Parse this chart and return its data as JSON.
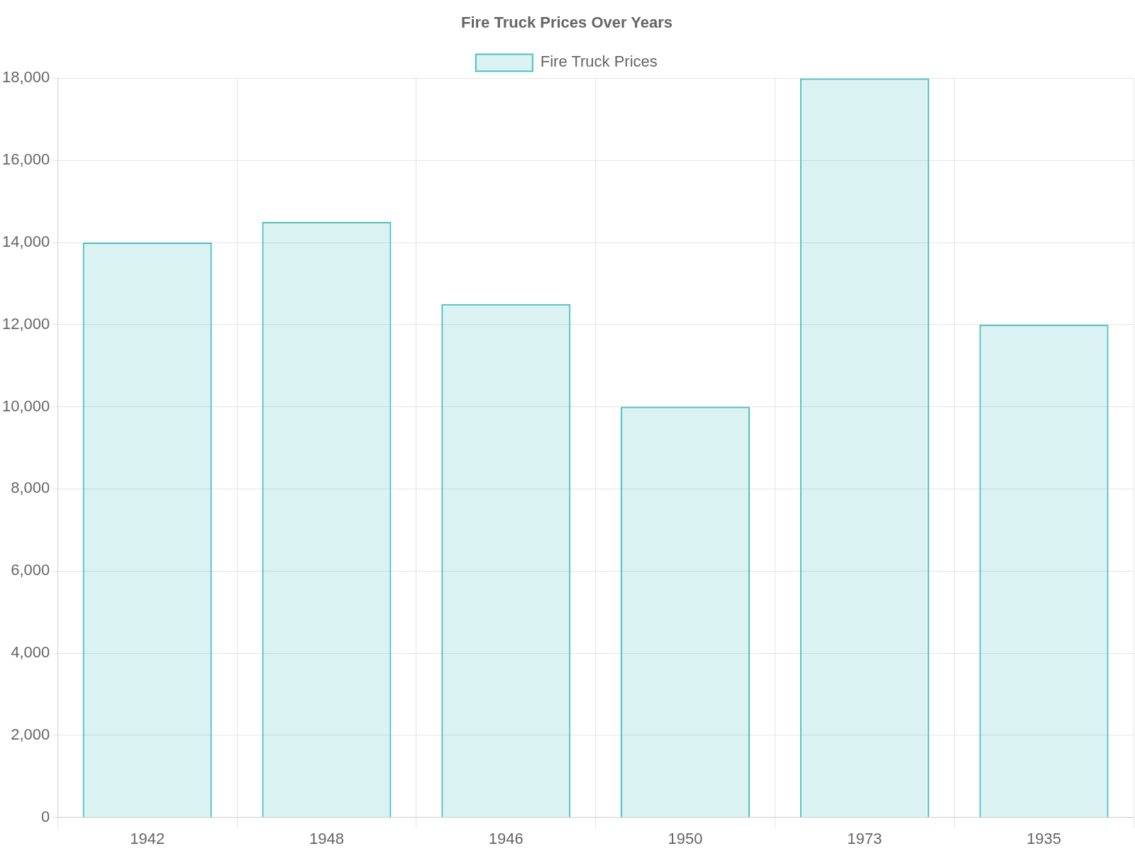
{
  "chart_data": {
    "type": "bar",
    "title": "Fire Truck Prices Over Years",
    "categories": [
      "1942",
      "1948",
      "1946",
      "1950",
      "1973",
      "1935"
    ],
    "series": [
      {
        "name": "Fire Truck Prices",
        "color": "#4bc0c0",
        "values": [
          14000,
          14500,
          12500,
          10000,
          18000,
          12000
        ]
      }
    ],
    "ylim": [
      0,
      18000
    ],
    "yticks": [
      0,
      {
        "value": 2000,
        "label": "2,000"
      },
      {
        "value": 4000,
        "label": "4,000"
      },
      {
        "value": 6000,
        "label": "6,000"
      },
      {
        "value": 8000,
        "label": "8,000"
      },
      {
        "value": 10000,
        "label": "10,000"
      },
      {
        "value": 12000,
        "label": "12,000"
      },
      {
        "value": 14000,
        "label": "14,000"
      },
      {
        "value": 16000,
        "label": "16,000"
      },
      {
        "value": 18000,
        "label": "18,000"
      }
    ],
    "grid": true,
    "legend": "top"
  }
}
